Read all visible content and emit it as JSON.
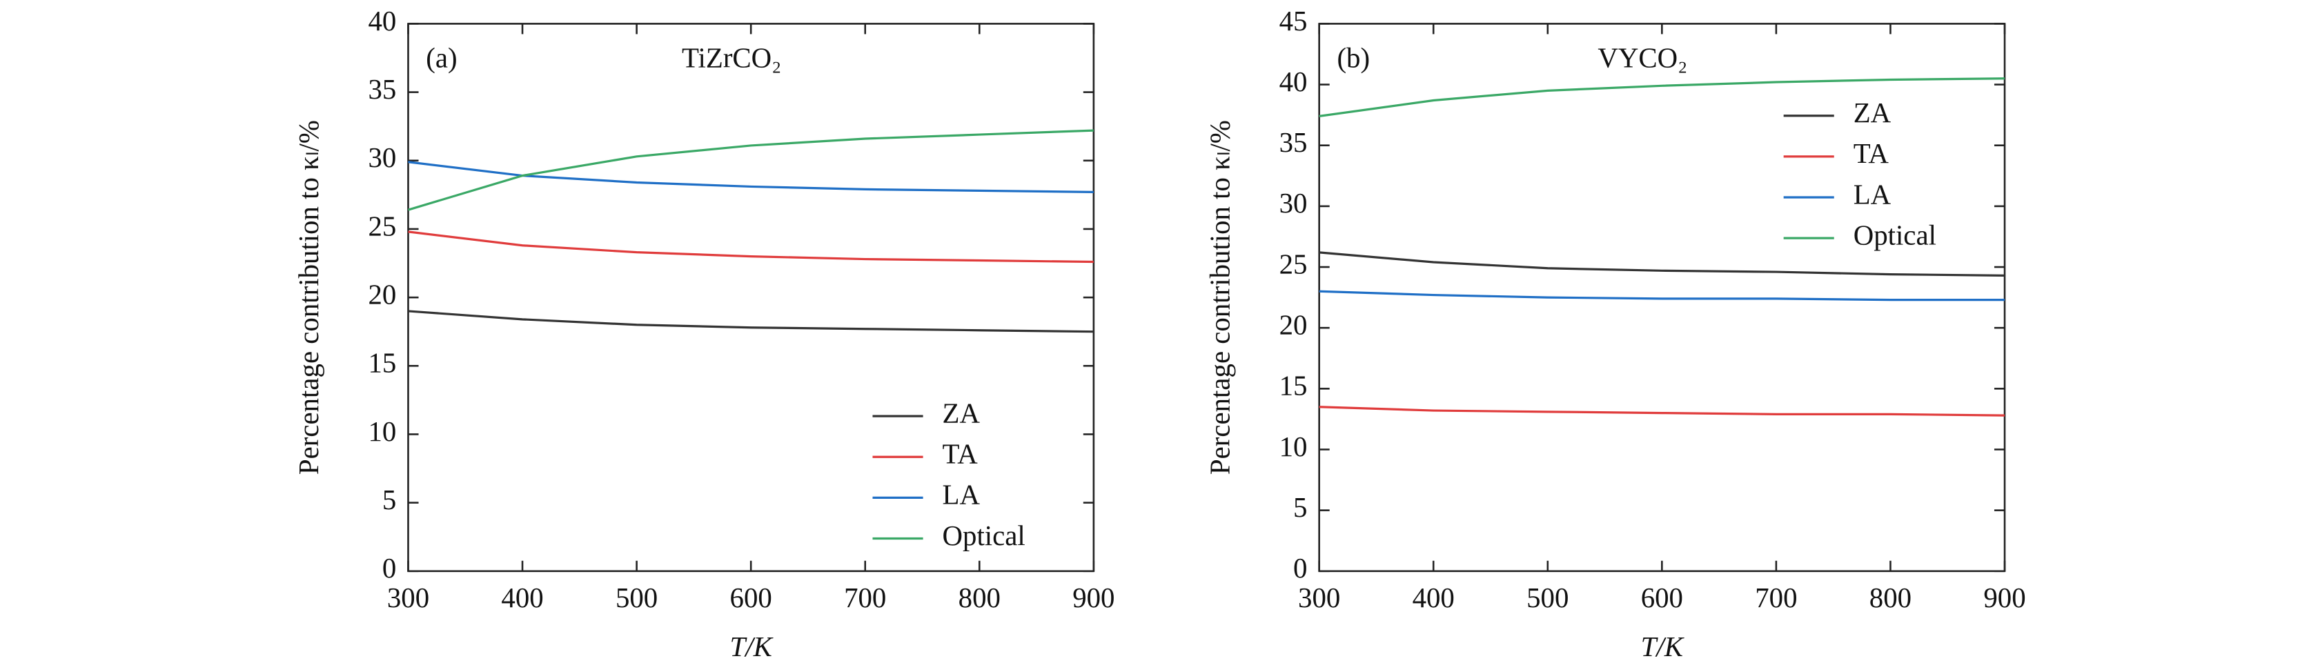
{
  "chart_data": [
    {
      "type": "line",
      "annotation": "(a)",
      "title": "TiZrCO₂",
      "x_label": "T/K",
      "y_label": "Percentage contribution to κₗ/%",
      "x": [
        300,
        400,
        500,
        600,
        700,
        800,
        900
      ],
      "xlim": [
        300,
        900
      ],
      "xticks": [
        300,
        400,
        500,
        600,
        700,
        800,
        900
      ],
      "ylim": [
        0,
        40
      ],
      "yticks": [
        0,
        5,
        10,
        15,
        20,
        25,
        30,
        35,
        40
      ],
      "legend": "lower right",
      "series": [
        {
          "name": "ZA",
          "color": "#333333",
          "values": [
            19.0,
            18.4,
            18.0,
            17.8,
            17.7,
            17.6,
            17.5
          ]
        },
        {
          "name": "TA",
          "color": "#e03c3c",
          "values": [
            24.8,
            23.8,
            23.3,
            23.0,
            22.8,
            22.7,
            22.6
          ]
        },
        {
          "name": "LA",
          "color": "#1f6fc6",
          "values": [
            29.9,
            28.9,
            28.4,
            28.1,
            27.9,
            27.8,
            27.7
          ]
        },
        {
          "name": "Optical",
          "color": "#3aa866",
          "values": [
            26.4,
            28.9,
            30.3,
            31.1,
            31.6,
            31.9,
            32.2
          ]
        }
      ]
    },
    {
      "type": "line",
      "annotation": "(b)",
      "title": "VYCO₂",
      "x_label": "T/K",
      "y_label": "Percentage contribution to κₗ/%",
      "x": [
        300,
        400,
        500,
        600,
        700,
        800,
        900
      ],
      "xlim": [
        300,
        900
      ],
      "xticks": [
        300,
        400,
        500,
        600,
        700,
        800,
        900
      ],
      "ylim": [
        0,
        45
      ],
      "yticks": [
        0,
        5,
        10,
        15,
        20,
        25,
        30,
        35,
        40,
        45
      ],
      "legend": "upper right",
      "series": [
        {
          "name": "ZA",
          "color": "#333333",
          "values": [
            26.2,
            25.4,
            24.9,
            24.7,
            24.6,
            24.4,
            24.3
          ]
        },
        {
          "name": "TA",
          "color": "#e03c3c",
          "values": [
            13.5,
            13.2,
            13.1,
            13.0,
            12.9,
            12.9,
            12.8
          ]
        },
        {
          "name": "LA",
          "color": "#1f6fc6",
          "values": [
            23.0,
            22.7,
            22.5,
            22.4,
            22.4,
            22.3,
            22.3
          ]
        },
        {
          "name": "Optical",
          "color": "#3aa866",
          "values": [
            37.4,
            38.7,
            39.5,
            39.9,
            40.2,
            40.4,
            40.5
          ]
        }
      ]
    }
  ]
}
